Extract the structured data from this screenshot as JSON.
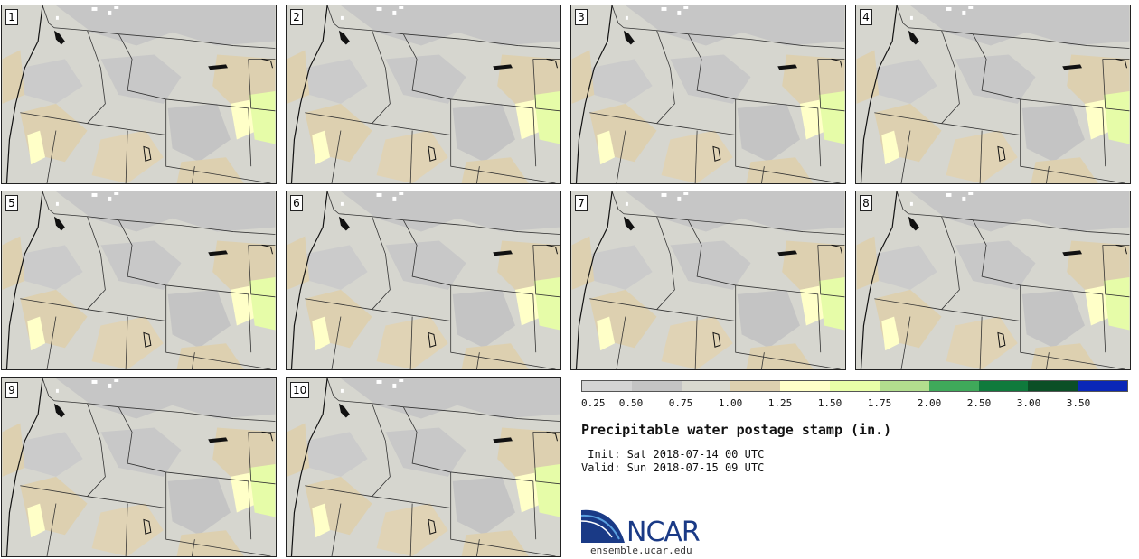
{
  "panels": [
    {
      "label": "1"
    },
    {
      "label": "2"
    },
    {
      "label": "3"
    },
    {
      "label": "4"
    },
    {
      "label": "5"
    },
    {
      "label": "6"
    },
    {
      "label": "7"
    },
    {
      "label": "8"
    },
    {
      "label": "9"
    },
    {
      "label": "10"
    }
  ],
  "colorbar": {
    "colors": [
      "#d4d4d4",
      "#c4c4c4",
      "#d9d9cf",
      "#ddd0b0",
      "#ffffc8",
      "#e8ffa8",
      "#b2de8e",
      "#3fa95a",
      "#0f7a3c",
      "#0b4f26",
      "#0a27b8"
    ],
    "tick_labels": [
      "0.25",
      "0.50",
      "0.75",
      "1.00",
      "1.25",
      "1.50",
      "1.75",
      "2.00",
      "2.50",
      "3.00",
      "3.50"
    ]
  },
  "title": "Precipitable water postage stamp (in.)",
  "init_line": " Init: Sat 2018-07-14 00 UTC",
  "valid_line": "Valid: Sun 2018-07-15 09 UTC",
  "logo": {
    "name": "NCAR",
    "url": "ensemble.ucar.edu",
    "icon": "ncar-swoosh-icon"
  }
}
